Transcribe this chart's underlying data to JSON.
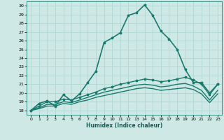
{
  "title": "",
  "xlabel": "Humidex (Indice chaleur)",
  "background_color": "#cde8e5",
  "grid_color": "#b0d8d4",
  "line_color": "#1a7a6e",
  "xlim": [
    -0.5,
    23.5
  ],
  "ylim": [
    17.5,
    30.5
  ],
  "xticks": [
    0,
    1,
    2,
    3,
    4,
    5,
    6,
    7,
    8,
    9,
    10,
    11,
    12,
    13,
    14,
    15,
    16,
    17,
    18,
    19,
    20,
    21,
    22,
    23
  ],
  "yticks": [
    18,
    19,
    20,
    21,
    22,
    23,
    24,
    25,
    26,
    27,
    28,
    29,
    30
  ],
  "series": [
    {
      "x": [
        0,
        1,
        2,
        3,
        4,
        5,
        6,
        7,
        8,
        9,
        10,
        11,
        12,
        13,
        14,
        15,
        16,
        17,
        18,
        19,
        20,
        21,
        22,
        23
      ],
      "y": [
        18,
        18.8,
        19.1,
        18.5,
        19.8,
        19.1,
        19.9,
        21.2,
        22.5,
        25.8,
        26.3,
        26.9,
        28.9,
        29.2,
        30.1,
        28.9,
        27.1,
        26.2,
        25.0,
        22.7,
        21.2,
        21.2,
        20.0,
        21.0
      ],
      "marker": "*",
      "linewidth": 1.2
    },
    {
      "x": [
        0,
        1,
        2,
        3,
        4,
        5,
        6,
        7,
        8,
        9,
        10,
        11,
        12,
        13,
        14,
        15,
        16,
        17,
        18,
        19,
        20,
        21,
        22,
        23
      ],
      "y": [
        18,
        18.5,
        19.0,
        19.0,
        19.3,
        19.2,
        19.5,
        19.8,
        20.1,
        20.5,
        20.7,
        21.0,
        21.2,
        21.4,
        21.6,
        21.5,
        21.3,
        21.4,
        21.6,
        21.8,
        21.5,
        21.0,
        19.8,
        21.0
      ],
      "marker": "*",
      "linewidth": 1.0
    },
    {
      "x": [
        0,
        1,
        2,
        3,
        4,
        5,
        6,
        7,
        8,
        9,
        10,
        11,
        12,
        13,
        14,
        15,
        16,
        17,
        18,
        19,
        20,
        21,
        22,
        23
      ],
      "y": [
        18,
        18.3,
        18.7,
        18.7,
        19.0,
        18.9,
        19.2,
        19.5,
        19.8,
        20.1,
        20.3,
        20.5,
        20.7,
        20.9,
        21.0,
        20.9,
        20.7,
        20.8,
        21.0,
        21.1,
        20.8,
        20.3,
        19.2,
        20.3
      ],
      "marker": null,
      "linewidth": 1.0
    },
    {
      "x": [
        0,
        1,
        2,
        3,
        4,
        5,
        6,
        7,
        8,
        9,
        10,
        11,
        12,
        13,
        14,
        15,
        16,
        17,
        18,
        19,
        20,
        21,
        22,
        23
      ],
      "y": [
        18,
        18.2,
        18.5,
        18.5,
        18.8,
        18.7,
        19.0,
        19.2,
        19.5,
        19.7,
        19.9,
        20.1,
        20.3,
        20.5,
        20.6,
        20.5,
        20.3,
        20.4,
        20.5,
        20.6,
        20.4,
        19.9,
        18.9,
        19.9
      ],
      "marker": null,
      "linewidth": 1.0
    }
  ]
}
